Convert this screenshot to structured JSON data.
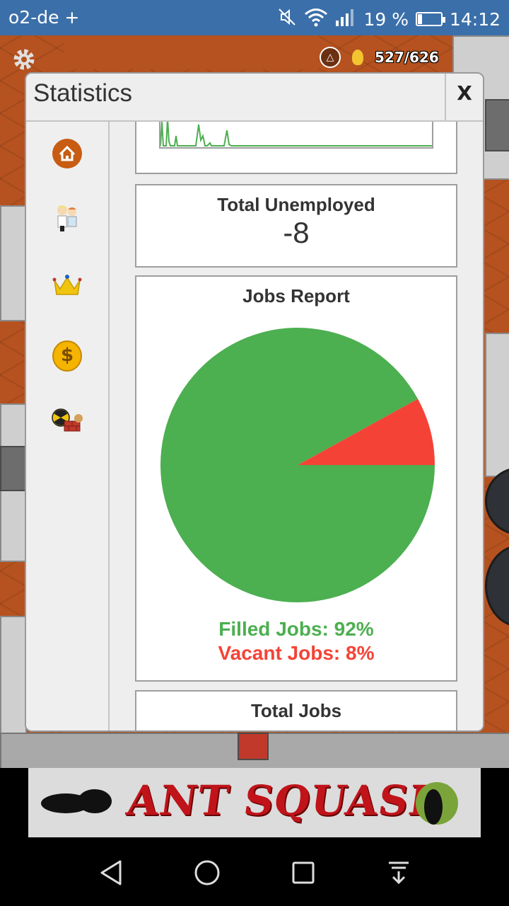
{
  "status_bar": {
    "carrier": "o2-de +",
    "battery": "19 %",
    "time": "14:12",
    "icons": [
      "mute-icon",
      "wifi-icon",
      "signal-icon",
      "battery-icon"
    ]
  },
  "hud": {
    "population": "527/626",
    "icons": [
      "settings-gear-icon",
      "triangle-alert-icon",
      "power-bulb-icon"
    ]
  },
  "dialog": {
    "title": "Statistics",
    "close_label": "X",
    "sidebar": [
      {
        "name": "home",
        "icon": "home-icon"
      },
      {
        "name": "population",
        "icon": "people-icon"
      },
      {
        "name": "happiness",
        "icon": "crown-icon"
      },
      {
        "name": "finance",
        "icon": "coin-icon",
        "glyph": "$"
      },
      {
        "name": "industry",
        "icon": "industry-icon"
      }
    ],
    "cards": {
      "unemployed": {
        "title": "Total Unemployed",
        "value": "-8"
      },
      "jobs_report": {
        "title": "Jobs Report",
        "filled_label": "Filled Jobs: 92%",
        "vacant_label": "Vacant Jobs: 8%"
      },
      "total_jobs": {
        "title": "Total Jobs"
      }
    }
  },
  "chart_data": {
    "type": "pie",
    "title": "Jobs Report",
    "slices": [
      {
        "label": "Filled Jobs",
        "value": 92,
        "color": "#4caf50"
      },
      {
        "label": "Vacant Jobs",
        "value": 8,
        "color": "#f44336"
      }
    ]
  },
  "ad": {
    "text": "ANT SQUASH"
  },
  "colors": {
    "filled": "#4caf50",
    "vacant": "#f44336",
    "status_bar": "#3b6fa9"
  }
}
